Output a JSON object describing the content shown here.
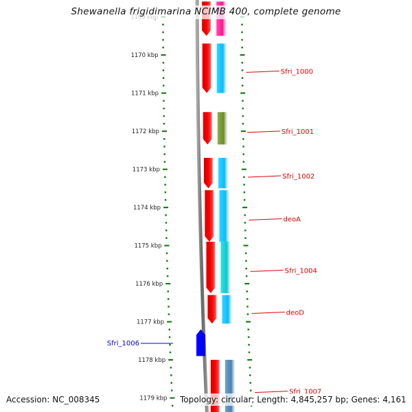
{
  "title": "Shewanella frigidimarina NCIMB 400, complete genome",
  "footer": {
    "accession": "Accession: NC_008345",
    "summary": "Topology: circular; Length: 4,845,257 bp; Genes: 4,161"
  },
  "colors": {
    "backbone": "#888888",
    "tick": "#1a7a1a",
    "label_forward": "#dd0000",
    "label_reverse": "#0000cc"
  },
  "scale": {
    "unit": "kbp",
    "ticks": [
      {
        "kbp": 1169,
        "label": "1169 kbp",
        "faded": true
      },
      {
        "kbp": 1170,
        "label": "1170 kbp"
      },
      {
        "kbp": 1171,
        "label": "1171 kbp"
      },
      {
        "kbp": 1172,
        "label": "1172 kbp"
      },
      {
        "kbp": 1173,
        "label": "1173 kbp"
      },
      {
        "kbp": 1174,
        "label": "1174 kbp"
      },
      {
        "kbp": 1175,
        "label": "1175 kbp"
      },
      {
        "kbp": 1176,
        "label": "1176 kbp"
      },
      {
        "kbp": 1177,
        "label": "1177 kbp"
      },
      {
        "kbp": 1178,
        "label": "1178 kbp"
      },
      {
        "kbp": 1179,
        "label": "1179 kbp"
      }
    ]
  },
  "genes": [
    {
      "name": "",
      "strand": "+",
      "start_kbp": 1168.6,
      "end_kbp": 1169.5,
      "cog_color": "#ff1493"
    },
    {
      "name": "Sfri_1000",
      "strand": "+",
      "start_kbp": 1169.7,
      "end_kbp": 1171.0,
      "cog_color": "#00bfff"
    },
    {
      "name": "Sfri_1001",
      "strand": "+",
      "start_kbp": 1171.5,
      "end_kbp": 1172.35,
      "cog_color": "#6b8e23"
    },
    {
      "name": "Sfri_1002",
      "strand": "+",
      "start_kbp": 1172.7,
      "end_kbp": 1173.5,
      "cog_color": "#00bfff"
    },
    {
      "name": "deoA",
      "strand": "+",
      "start_kbp": 1173.55,
      "end_kbp": 1174.9,
      "cog_color": "#00bfff"
    },
    {
      "name": "Sfri_1004",
      "strand": "+",
      "start_kbp": 1174.9,
      "end_kbp": 1176.25,
      "cog_color": "#00ced1"
    },
    {
      "name": "deoD",
      "strand": "+",
      "start_kbp": 1176.3,
      "end_kbp": 1177.05,
      "cog_color": "#00bfff"
    },
    {
      "name": "Sfri_1006",
      "strand": "-",
      "start_kbp": 1177.2,
      "end_kbp": 1177.9,
      "cog_color": "#0000ff"
    },
    {
      "name": "Sfri_1007",
      "strand": "+",
      "start_kbp": 1178.0,
      "end_kbp": 1179.5,
      "cog_color": "#4682b4"
    }
  ]
}
